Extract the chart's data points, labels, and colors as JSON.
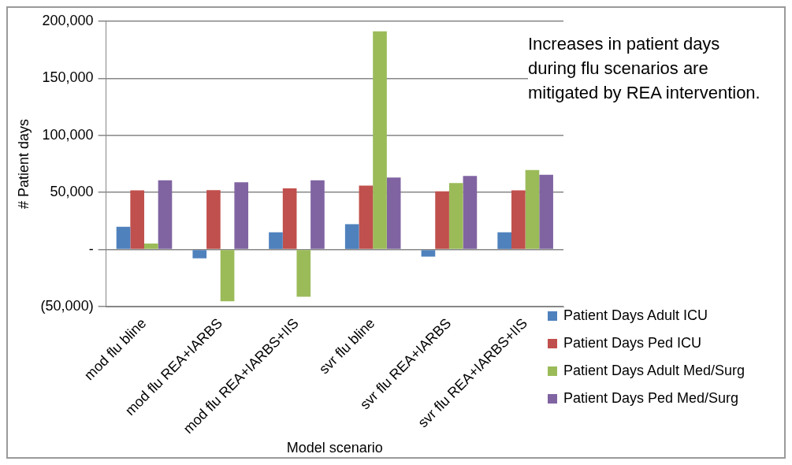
{
  "chart_data": {
    "type": "bar",
    "xlabel": "Model scenario",
    "ylabel": "# Patient days",
    "categories": [
      "mod flu bline",
      "mod flu REA+IARBS",
      "mod flu REA+IARBS+IIS",
      "svr flu bline",
      "svr flu REA+IARBS",
      "svr flu REA+IARBS+IIS"
    ],
    "series": [
      {
        "name": "Patient Days Adult ICU",
        "color": "#4f81bd",
        "values": [
          20000,
          -7700,
          15100,
          22200,
          -6200,
          15100
        ]
      },
      {
        "name": "Patient Days Ped ICU",
        "color": "#c0504d",
        "values": [
          51800,
          52000,
          53600,
          56000,
          51000,
          51800
        ]
      },
      {
        "name": "Patient Days Adult Med/Surg",
        "color": "#9bbb59",
        "values": [
          5300,
          -45300,
          -41400,
          191000,
          58300,
          69600
        ]
      },
      {
        "name": "Patient Days Ped Med/Surg",
        "color": "#8064a2",
        "values": [
          60700,
          58900,
          60700,
          63000,
          64500,
          65400
        ]
      }
    ],
    "ylim": [
      -50000,
      200000
    ],
    "yticks": [
      {
        "value": -50000,
        "label": "(50,000)"
      },
      {
        "value": 0,
        "label": "-"
      },
      {
        "value": 50000,
        "label": "50,000"
      },
      {
        "value": 100000,
        "label": "100,000"
      },
      {
        "value": 150000,
        "label": "150,000"
      },
      {
        "value": 200000,
        "label": "200,000"
      }
    ],
    "grid": "y",
    "legend": "bottom right",
    "annotations": [
      "Increases in patient days during flu scenarios are mitigated by REA intervention."
    ]
  }
}
